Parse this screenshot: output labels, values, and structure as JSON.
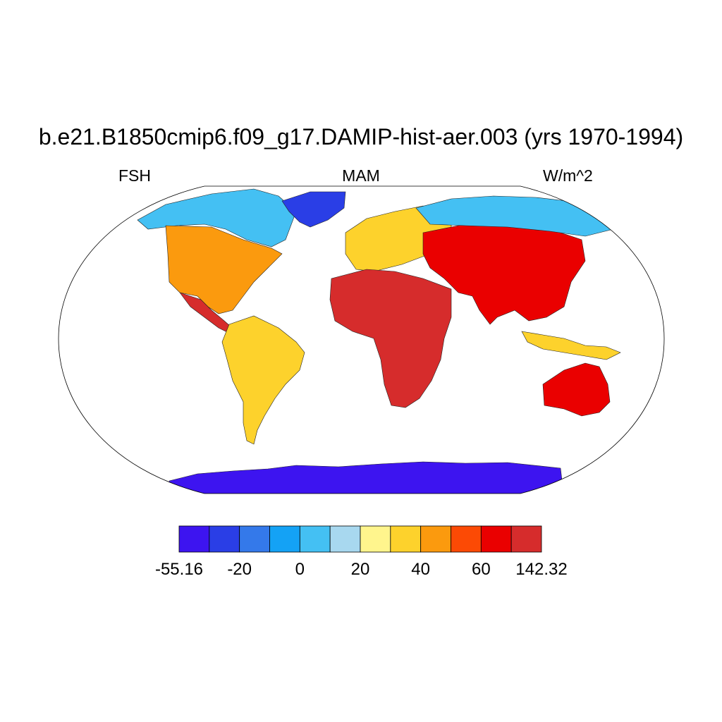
{
  "title": "b.e21.B1850cmip6.f09_g17.DAMIP-hist-aer.003 (yrs 1970-1994)",
  "variable": "FSH",
  "season": "MAM",
  "units": "W/m^2",
  "colorbar": {
    "colors": [
      "#3d14f0",
      "#2a3ee6",
      "#3479ea",
      "#14a2f5",
      "#44c0f3",
      "#a8d8ef",
      "#fff58d",
      "#fdd22c",
      "#fb9a0e",
      "#fc4a05",
      "#ea0000",
      "#d62c2c"
    ],
    "labels": [
      "-55.16",
      "-20",
      "0",
      "20",
      "40",
      "60",
      "142.32"
    ]
  },
  "regions": [
    {
      "name": "arctic-canada",
      "color": "#44c0f3"
    },
    {
      "name": "greenland",
      "color": "#2a3ee6"
    },
    {
      "name": "north-america",
      "color": "#fb9a0e"
    },
    {
      "name": "central-america",
      "color": "#d62c2c"
    },
    {
      "name": "south-america",
      "color": "#fdd22c"
    },
    {
      "name": "europe",
      "color": "#fdd22c"
    },
    {
      "name": "africa",
      "color": "#d62c2c"
    },
    {
      "name": "asia",
      "color": "#ea0000"
    },
    {
      "name": "siberia",
      "color": "#44c0f3"
    },
    {
      "name": "maritime-continent",
      "color": "#fdd22c"
    },
    {
      "name": "australia",
      "color": "#ea0000"
    },
    {
      "name": "antarctica",
      "color": "#3d14f0"
    }
  ]
}
